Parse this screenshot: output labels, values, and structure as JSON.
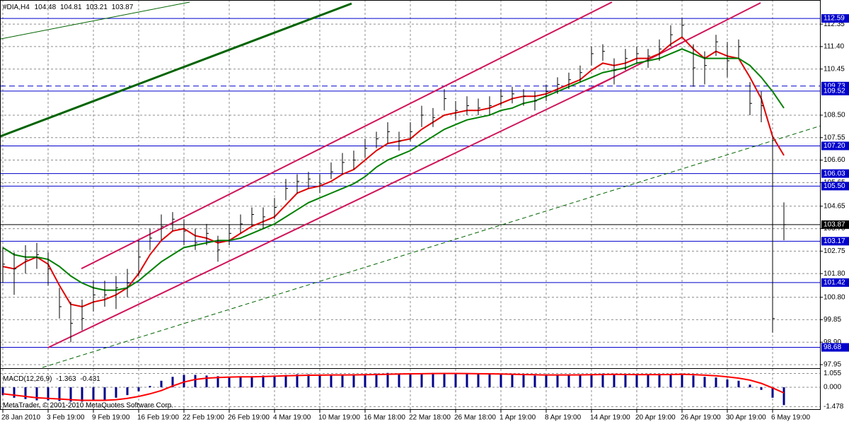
{
  "footer": "MetaTrader, © 2001-2010 MetaQuotes Software Corp.",
  "chart_data": [
    {
      "type": "ohlc",
      "title": "#DIA,H4",
      "quote": [
        104.48,
        104.81,
        103.21,
        103.87
      ],
      "color": "#000000",
      "x": [
        0,
        1,
        2,
        3,
        4,
        5,
        6,
        7,
        8,
        9,
        10,
        11,
        12,
        13,
        14,
        15,
        16,
        17,
        18,
        19,
        20,
        21,
        22,
        23,
        24,
        25,
        26,
        27,
        28,
        29,
        30,
        31,
        32,
        33,
        34,
        35,
        36,
        37,
        38,
        39,
        40,
        41,
        42,
        43,
        44,
        45,
        46,
        47,
        48,
        49,
        50,
        51,
        52,
        53,
        54,
        55,
        56,
        57,
        58,
        59,
        60,
        61,
        62,
        63,
        64,
        65,
        66,
        67,
        68,
        69
      ],
      "high": [
        102.9,
        102.7,
        103.0,
        103.1,
        102.7,
        101.2,
        100.6,
        100.7,
        101.5,
        101.5,
        101.7,
        102.0,
        103.2,
        103.7,
        104.3,
        104.4,
        104.1,
        103.7,
        103.9,
        103.4,
        103.9,
        104.3,
        104.6,
        104.6,
        105.0,
        105.8,
        106.0,
        106.1,
        106.0,
        106.5,
        106.9,
        107.0,
        107.5,
        107.8,
        108.2,
        107.8,
        108.2,
        108.9,
        108.8,
        109.6,
        109.1,
        109.3,
        109.2,
        109.3,
        109.6,
        109.7,
        109.6,
        109.5,
        109.8,
        110.1,
        110.3,
        110.6,
        111.4,
        111.5,
        110.9,
        111.3,
        111.4,
        111.3,
        111.7,
        112.3,
        112.6,
        111.5,
        111.2,
        111.9,
        111.6,
        111.7,
        109.9,
        109.5,
        107.6,
        104.81
      ],
      "low": [
        101.4,
        100.9,
        101.8,
        102.0,
        101.3,
        99.9,
        98.9,
        99.4,
        100.2,
        100.4,
        100.3,
        100.8,
        101.7,
        102.8,
        103.2,
        103.6,
        103.0,
        102.8,
        103.0,
        102.3,
        103.0,
        103.5,
        103.8,
        103.7,
        104.1,
        104.9,
        105.2,
        105.4,
        105.2,
        105.8,
        106.0,
        106.2,
        106.7,
        107.1,
        107.3,
        107.0,
        107.4,
        108.0,
        108.0,
        108.7,
        108.3,
        108.5,
        108.5,
        108.5,
        108.9,
        109.0,
        108.9,
        108.7,
        109.1,
        109.4,
        109.6,
        109.9,
        110.6,
        110.8,
        109.8,
        110.4,
        110.7,
        110.5,
        110.8,
        111.4,
        111.8,
        109.7,
        109.8,
        111.0,
        110.1,
        110.9,
        108.5,
        108.2,
        99.3,
        103.21
      ],
      "close": [
        102.2,
        102.0,
        102.4,
        102.6,
        102.0,
        100.4,
        99.7,
        99.9,
        100.9,
        100.9,
        101.2,
        101.4,
        102.5,
        103.3,
        103.8,
        104.1,
        103.6,
        103.1,
        103.5,
        102.8,
        103.5,
        103.9,
        104.3,
        104.2,
        104.6,
        105.4,
        105.7,
        105.8,
        105.6,
        106.1,
        106.5,
        106.6,
        107.1,
        107.5,
        107.8,
        107.4,
        107.8,
        108.5,
        108.4,
        109.2,
        108.7,
        108.9,
        108.8,
        108.9,
        109.3,
        109.4,
        109.3,
        109.1,
        109.5,
        109.8,
        110.0,
        110.3,
        111.1,
        111.2,
        110.4,
        110.9,
        111.1,
        111.0,
        111.3,
        111.9,
        112.3,
        110.5,
        110.6,
        111.6,
        110.8,
        111.4,
        109.0,
        108.9,
        99.9,
        103.87
      ],
      "series": [
        {
          "color": "#e00000",
          "values": [
            102.1,
            102.0,
            102.3,
            102.5,
            102.2,
            101.3,
            100.5,
            100.4,
            100.6,
            100.7,
            100.9,
            101.2,
            101.8,
            102.6,
            103.2,
            103.6,
            103.7,
            103.4,
            103.3,
            103.1,
            103.2,
            103.5,
            103.8,
            104.0,
            104.2,
            104.7,
            105.2,
            105.4,
            105.5,
            105.7,
            106.0,
            106.2,
            106.6,
            107.0,
            107.3,
            107.4,
            107.5,
            107.9,
            108.2,
            108.5,
            108.6,
            108.7,
            108.7,
            108.8,
            109.0,
            109.2,
            109.3,
            109.3,
            109.4,
            109.6,
            109.8,
            110.0,
            110.4,
            110.7,
            110.6,
            110.7,
            110.9,
            110.9,
            111.1,
            111.5,
            111.8,
            111.3,
            110.9,
            111.2,
            111.0,
            110.9,
            110.1,
            109.2,
            107.6,
            106.8
          ]
        },
        {
          "color": "#008000",
          "values": [
            102.9,
            102.6,
            102.5,
            102.5,
            102.4,
            102.1,
            101.7,
            101.4,
            101.2,
            101.1,
            101.1,
            101.2,
            101.5,
            101.9,
            102.3,
            102.6,
            102.9,
            103.0,
            103.1,
            103.2,
            103.2,
            103.3,
            103.5,
            103.7,
            103.9,
            104.2,
            104.5,
            104.8,
            105.0,
            105.2,
            105.4,
            105.6,
            105.9,
            106.3,
            106.6,
            106.8,
            107.0,
            107.3,
            107.6,
            107.9,
            108.1,
            108.3,
            108.4,
            108.5,
            108.7,
            108.8,
            109.0,
            109.1,
            109.3,
            109.5,
            109.7,
            109.9,
            110.1,
            110.3,
            110.4,
            110.5,
            110.7,
            110.8,
            110.9,
            111.1,
            111.3,
            111.1,
            110.9,
            110.9,
            110.9,
            110.9,
            110.6,
            110.1,
            109.5,
            108.8
          ]
        }
      ],
      "xlim": [
        -0.25,
        72.25
      ],
      "xticks": [
        {
          "value": 0,
          "label": "28 Jan 2010"
        },
        {
          "value": 4,
          "label": "3 Feb 19:00"
        },
        {
          "value": 8,
          "label": "9 Feb 19:00"
        },
        {
          "value": 12,
          "label": "16 Feb 19:00"
        },
        {
          "value": 16,
          "label": "22 Feb 19:00"
        },
        {
          "value": 20,
          "label": "26 Feb 19:00"
        },
        {
          "value": 24,
          "label": "4 Mar 19:00"
        },
        {
          "value": 28,
          "label": "10 Mar 19:00"
        },
        {
          "value": 32,
          "label": "16 Mar 18:00"
        },
        {
          "value": 36,
          "label": "22 Mar 18:00"
        },
        {
          "value": 40,
          "label": "26 Mar 18:00"
        },
        {
          "value": 44,
          "label": "1 Apr 19:00"
        },
        {
          "value": 48,
          "label": "8 Apr 19:00"
        },
        {
          "value": 52,
          "label": "14 Apr 19:00"
        },
        {
          "value": 56,
          "label": "20 Apr 19:00"
        },
        {
          "value": 60,
          "label": "26 Apr 19:00"
        },
        {
          "value": 64,
          "label": "30 Apr 19:00"
        },
        {
          "value": 68,
          "label": "6 May 19:00"
        }
      ],
      "ylim": [
        97.83,
        113.37
      ],
      "yticks": [
        112.35,
        {
          "value": 111.4,
          "label": "111.40"
        },
        110.45,
        {
          "value": 108.5,
          "label": "108.50"
        },
        107.55,
        {
          "value": 106.6,
          "label": "106.60"
        },
        105.65,
        104.65,
        {
          "value": 103.7,
          "label": "103.70"
        },
        102.75,
        {
          "value": 101.8,
          "label": "101.80"
        },
        {
          "value": 100.8,
          "label": "100.80"
        },
        99.85,
        {
          "value": 98.9,
          "label": "98.90"
        },
        97.95
      ],
      "grid": true,
      "levels": [
        {
          "value": 112.59,
          "color": "#0000cd",
          "dashed": false
        },
        {
          "value": 109.73,
          "color": "#0000cd",
          "dashed": true
        },
        {
          "value": 109.52,
          "color": "#0000cd",
          "dashed": false
        },
        {
          "value": {
            "value": 107.2,
            "label": "107.20"
          },
          "color": "#0000cd",
          "dashed": false
        },
        {
          "value": 106.03,
          "color": "#0000cd",
          "dashed": false
        },
        {
          "value": {
            "value": 105.5,
            "label": "105.50"
          },
          "color": "#0000cd",
          "dashed": false
        },
        {
          "value": 103.87,
          "color": "#000000",
          "dashed": false
        },
        {
          "value": 103.17,
          "color": "#0000cd",
          "dashed": false
        },
        {
          "value": 101.42,
          "color": "#0000cd",
          "dashed": false
        },
        {
          "value": 98.68,
          "color": "#0000cd",
          "dashed": false
        }
      ],
      "trendlines": [
        {
          "x": [
            6.94,
            53.81
          ],
          "y": [
            102.01,
            113.28
          ],
          "color": "#d0145a",
          "width": 2,
          "dashed": false
        },
        {
          "x": [
            4.0,
            54.13
          ],
          "y": [
            98.67,
            110.14
          ],
          "color": "#d0145a",
          "width": 2,
          "dashed": false
        },
        {
          "x": [
            51.63,
            66.94
          ],
          "y": [
            109.54,
            113.25
          ],
          "color": "#d0145a",
          "width": 2,
          "dashed": false
        },
        {
          "x": [
            -0.25,
            30.81
          ],
          "y": [
            107.6,
            113.22
          ],
          "color": "#006400",
          "width": 3,
          "dashed": false
        },
        {
          "x": [
            -0.25,
            16.5
          ],
          "y": [
            111.72,
            113.28
          ],
          "color": "#006400",
          "width": 1,
          "dashed": false
        },
        {
          "x": [
            3.5,
            72.25
          ],
          "y": [
            97.83,
            108.05
          ],
          "color": "#006400",
          "width": 1,
          "dashed": true
        }
      ]
    },
    {
      "type": "macd",
      "title": "MACD(12,26,9)",
      "readout": [
        -1.363,
        -0.431
      ],
      "histogram": {
        "color": "#00008b",
        "values": [
          -0.6,
          -0.8,
          -0.9,
          -1.0,
          -1.0,
          -1.05,
          -1.1,
          -1.1,
          -1.05,
          -0.95,
          -0.8,
          -0.6,
          -0.3,
          0.1,
          0.5,
          0.8,
          0.95,
          0.95,
          0.9,
          0.85,
          0.8,
          0.8,
          0.85,
          0.9,
          0.9,
          0.95,
          1.0,
          1.0,
          0.95,
          0.95,
          0.95,
          0.95,
          1.0,
          1.05,
          1.1,
          1.05,
          1.05,
          1.05,
          1.1,
          1.1,
          1.05,
          1.05,
          1.0,
          1.0,
          1.0,
          1.0,
          0.95,
          0.9,
          0.9,
          0.95,
          0.95,
          0.95,
          1.0,
          1.05,
          1.0,
          0.95,
          0.95,
          0.95,
          0.95,
          1.0,
          1.05,
          0.9,
          0.8,
          0.75,
          0.6,
          0.5,
          0.2,
          -0.2,
          -0.8,
          -1.363
        ]
      },
      "signal": {
        "color": "#ff0000",
        "values": [
          -0.5,
          -0.6,
          -0.7,
          -0.8,
          -0.85,
          -0.9,
          -0.95,
          -1.0,
          -1.0,
          -1.0,
          -0.95,
          -0.85,
          -0.7,
          -0.5,
          -0.25,
          0.1,
          0.4,
          0.6,
          0.7,
          0.75,
          0.78,
          0.8,
          0.8,
          0.82,
          0.85,
          0.88,
          0.9,
          0.92,
          0.93,
          0.94,
          0.94,
          0.95,
          0.96,
          0.98,
          1.0,
          1.02,
          1.03,
          1.04,
          1.05,
          1.06,
          1.06,
          1.05,
          1.04,
          1.03,
          1.02,
          1.0,
          0.98,
          0.96,
          0.94,
          0.94,
          0.94,
          0.95,
          0.96,
          0.98,
          0.99,
          0.98,
          0.97,
          0.97,
          0.97,
          0.98,
          1.0,
          0.97,
          0.93,
          0.88,
          0.8,
          0.7,
          0.55,
          0.3,
          -0.05,
          -0.431
        ]
      },
      "ylim": [
        -1.73,
        1.41
      ],
      "yticks": [
        1.055,
        {
          "value": 0,
          "label": "0.000"
        },
        -1.478
      ]
    }
  ]
}
